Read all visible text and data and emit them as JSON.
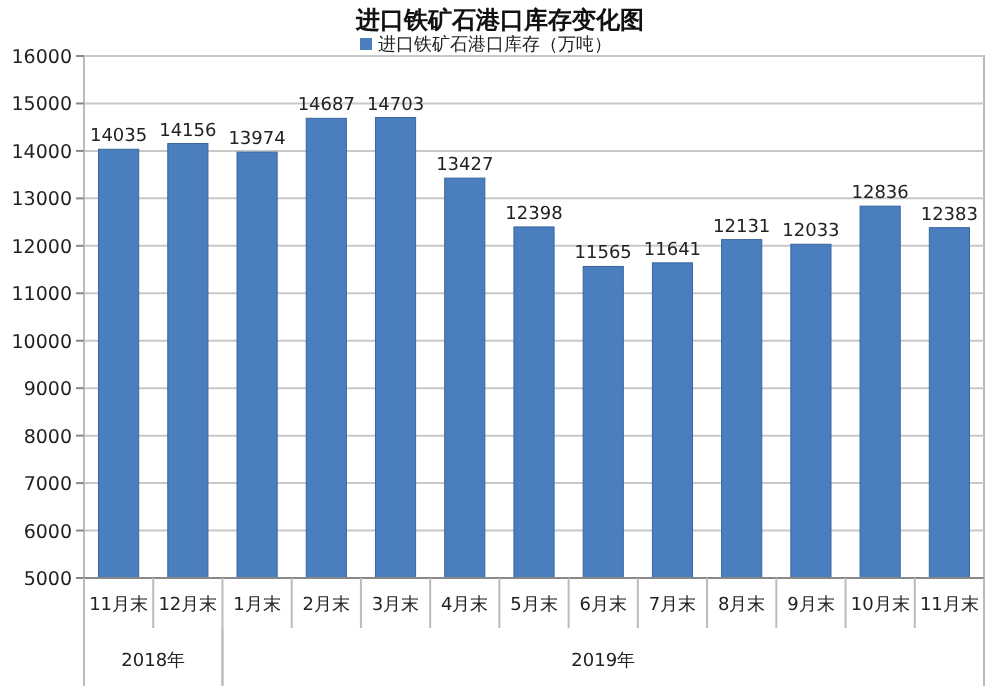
{
  "chart_data": {
    "type": "bar",
    "title": "进口铁矿石港口库存变化图",
    "categories": [
      "11月末",
      "12月末",
      "1月末",
      "2月末",
      "3月末",
      "4月末",
      "5月末",
      "6月末",
      "7月末",
      "8月末",
      "9月末",
      "10月末",
      "11月末"
    ],
    "series": [
      {
        "name": "进口铁矿石港口库存（万吨）",
        "color": "#4a7ebf",
        "values": [
          14035,
          14156,
          13974,
          14687,
          14703,
          13427,
          12398,
          11565,
          11641,
          12131,
          12033,
          12836,
          12383
        ]
      }
    ],
    "annotations": [
      "2018年",
      "2019年"
    ],
    "ylim": [
      5000,
      16000
    ],
    "yticks": [
      5000,
      6000,
      7000,
      8000,
      9000,
      10000,
      11000,
      12000,
      13000,
      14000,
      15000,
      16000
    ],
    "grid": "y",
    "legend": "top",
    "data_labels": true
  }
}
